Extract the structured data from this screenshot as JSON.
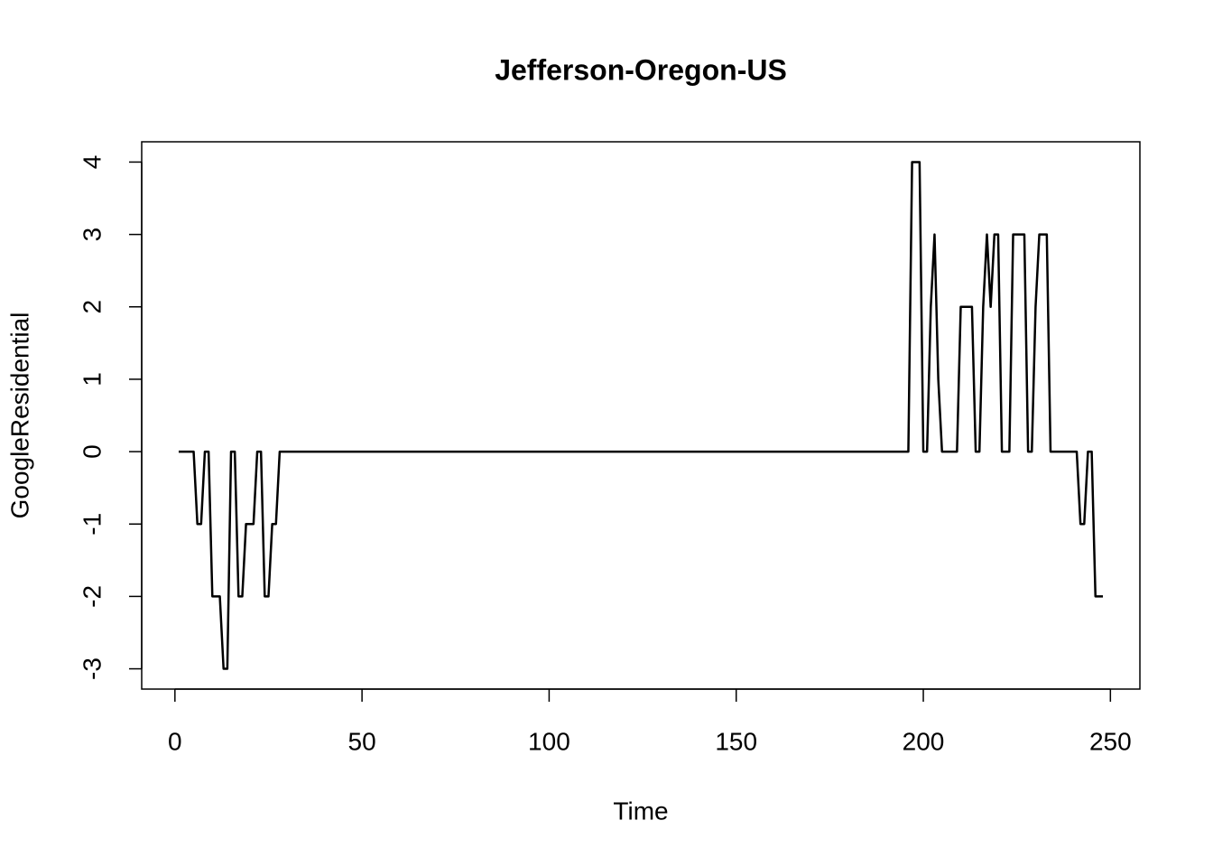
{
  "chart_data": {
    "type": "line",
    "title": "Jefferson-Oregon-US",
    "xlabel": "Time",
    "ylabel": "GoogleResidential",
    "color": "#000000",
    "x": [
      1,
      2,
      3,
      4,
      5,
      6,
      7,
      8,
      9,
      10,
      11,
      12,
      13,
      14,
      15,
      16,
      17,
      18,
      19,
      20,
      21,
      22,
      23,
      24,
      25,
      26,
      27,
      28,
      29,
      30,
      31,
      32,
      33,
      34,
      35,
      36,
      37,
      38,
      39,
      40,
      41,
      42,
      43,
      44,
      45,
      46,
      47,
      48,
      49,
      50,
      51,
      52,
      53,
      54,
      55,
      56,
      57,
      58,
      59,
      60,
      61,
      62,
      63,
      64,
      65,
      66,
      67,
      68,
      69,
      70,
      71,
      72,
      73,
      74,
      75,
      76,
      77,
      78,
      79,
      80,
      81,
      82,
      83,
      84,
      85,
      86,
      87,
      88,
      89,
      90,
      91,
      92,
      93,
      94,
      95,
      96,
      97,
      98,
      99,
      100,
      101,
      102,
      103,
      104,
      105,
      106,
      107,
      108,
      109,
      110,
      111,
      112,
      113,
      114,
      115,
      116,
      117,
      118,
      119,
      120,
      121,
      122,
      123,
      124,
      125,
      126,
      127,
      128,
      129,
      130,
      131,
      132,
      133,
      134,
      135,
      136,
      137,
      138,
      139,
      140,
      141,
      142,
      143,
      144,
      145,
      146,
      147,
      148,
      149,
      150,
      151,
      152,
      153,
      154,
      155,
      156,
      157,
      158,
      159,
      160,
      161,
      162,
      163,
      164,
      165,
      166,
      167,
      168,
      169,
      170,
      171,
      172,
      173,
      174,
      175,
      176,
      177,
      178,
      179,
      180,
      181,
      182,
      183,
      184,
      185,
      186,
      187,
      188,
      189,
      190,
      191,
      192,
      193,
      194,
      195,
      196,
      197,
      198,
      199,
      200,
      201,
      202,
      203,
      204,
      205,
      206,
      207,
      208,
      209,
      210,
      211,
      212,
      213,
      214,
      215,
      216,
      217,
      218,
      219,
      220,
      221,
      222,
      223,
      224,
      225,
      226,
      227,
      228,
      229,
      230,
      231,
      232,
      233,
      234,
      235,
      236,
      237,
      238,
      239,
      240,
      241,
      242,
      243,
      244,
      245,
      246,
      247,
      248
    ],
    "values": [
      0,
      0,
      0,
      0,
      0,
      -1,
      -1,
      0,
      0,
      -2,
      -2,
      -2,
      -3,
      -3,
      0,
      0,
      -2,
      -2,
      -1,
      -1,
      -1,
      0,
      0,
      -2,
      -2,
      -1,
      -1,
      0,
      0,
      0,
      0,
      0,
      0,
      0,
      0,
      0,
      0,
      0,
      0,
      0,
      0,
      0,
      0,
      0,
      0,
      0,
      0,
      0,
      0,
      0,
      0,
      0,
      0,
      0,
      0,
      0,
      0,
      0,
      0,
      0,
      0,
      0,
      0,
      0,
      0,
      0,
      0,
      0,
      0,
      0,
      0,
      0,
      0,
      0,
      0,
      0,
      0,
      0,
      0,
      0,
      0,
      0,
      0,
      0,
      0,
      0,
      0,
      0,
      0,
      0,
      0,
      0,
      0,
      0,
      0,
      0,
      0,
      0,
      0,
      0,
      0,
      0,
      0,
      0,
      0,
      0,
      0,
      0,
      0,
      0,
      0,
      0,
      0,
      0,
      0,
      0,
      0,
      0,
      0,
      0,
      0,
      0,
      0,
      0,
      0,
      0,
      0,
      0,
      0,
      0,
      0,
      0,
      0,
      0,
      0,
      0,
      0,
      0,
      0,
      0,
      0,
      0,
      0,
      0,
      0,
      0,
      0,
      0,
      0,
      0,
      0,
      0,
      0,
      0,
      0,
      0,
      0,
      0,
      0,
      0,
      0,
      0,
      0,
      0,
      0,
      0,
      0,
      0,
      0,
      0,
      0,
      0,
      0,
      0,
      0,
      0,
      0,
      0,
      0,
      0,
      0,
      0,
      0,
      0,
      0,
      0,
      0,
      0,
      0,
      0,
      0,
      0,
      0,
      0,
      0,
      0,
      4,
      4,
      4,
      0,
      0,
      2,
      3,
      1,
      0,
      0,
      0,
      0,
      0,
      2,
      2,
      2,
      2,
      0,
      0,
      2,
      3,
      2,
      3,
      3,
      0,
      0,
      0,
      3,
      3,
      3,
      3,
      0,
      0,
      2,
      3,
      3,
      3,
      0,
      0,
      0,
      0,
      0,
      0,
      0,
      0,
      -1,
      -1,
      0,
      0,
      -2,
      -2,
      -2
    ],
    "xlim": [
      -8.88,
      257.88
    ],
    "ylim": [
      -3.28,
      4.28
    ],
    "xticks": [
      0,
      50,
      100,
      150,
      200,
      250
    ],
    "yticks": [
      -3,
      -2,
      -1,
      0,
      1,
      2,
      3,
      4
    ]
  }
}
